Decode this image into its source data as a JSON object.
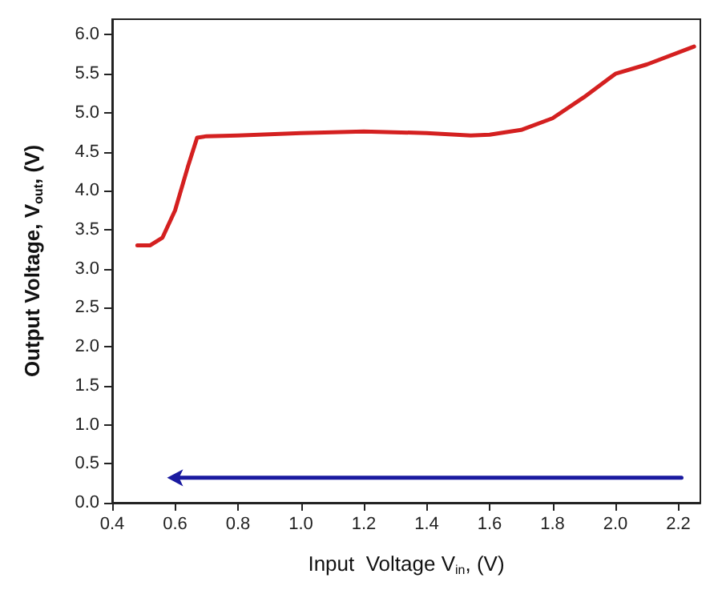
{
  "chart_data": {
    "type": "line",
    "xlabel": "Input  Voltage V$_{in}$, (V)",
    "ylabel": "Output Voltage, V$_{out}$, (V)",
    "xlim": [
      0.4,
      2.27
    ],
    "ylim": [
      0,
      6.2
    ],
    "xticks": [
      {
        "value": 0.4,
        "label": "0.4"
      },
      {
        "value": 0.6,
        "label": "0.6"
      },
      {
        "value": 0.8,
        "label": "0.8"
      },
      {
        "value": 1.0,
        "label": "1.0"
      },
      {
        "value": 1.2,
        "label": "1.2"
      },
      {
        "value": 1.4,
        "label": "1.4"
      },
      {
        "value": 1.6,
        "label": "1.6"
      },
      {
        "value": 1.8,
        "label": "1.8"
      },
      {
        "value": 2.0,
        "label": "2.0"
      },
      {
        "value": 2.2,
        "label": "2.2"
      }
    ],
    "yticks": [
      {
        "value": 0,
        "label": "0.0"
      },
      {
        "value": 0.5,
        "label": "0.5"
      },
      {
        "value": 1.0,
        "label": "1.0"
      },
      {
        "value": 1.5,
        "label": "1.5"
      },
      {
        "value": 2.0,
        "label": "2.0"
      },
      {
        "value": 2.5,
        "label": "2.5"
      },
      {
        "value": 3.0,
        "label": "3.0"
      },
      {
        "value": 3.5,
        "label": "3.5"
      },
      {
        "value": 4.0,
        "label": "4.0"
      },
      {
        "value": 4.5,
        "label": "4.5"
      },
      {
        "value": 5.0,
        "label": "5.0"
      },
      {
        "value": 5.5,
        "label": "5.5"
      },
      {
        "value": 6.0,
        "label": "6.0"
      }
    ],
    "grid": false,
    "line_style": "solid",
    "series": [
      {
        "color": "#d42020",
        "marker": "none",
        "x": [
          0.48,
          0.52,
          0.56,
          0.6,
          0.64,
          0.67,
          0.7,
          0.8,
          1.0,
          1.2,
          1.4,
          1.54,
          1.6,
          1.7,
          1.8,
          1.9,
          2.0,
          2.1,
          2.25
        ],
        "values": [
          3.3,
          3.3,
          3.4,
          3.75,
          4.3,
          4.68,
          4.7,
          4.71,
          4.74,
          4.76,
          4.74,
          4.71,
          4.72,
          4.78,
          4.93,
          5.2,
          5.5,
          5.62,
          5.85
        ]
      },
      {
        "color": "#1a1aa0",
        "x": [
          2.21,
          0.6
        ],
        "values": [
          0.32,
          0.32
        ]
      }
    ]
  }
}
